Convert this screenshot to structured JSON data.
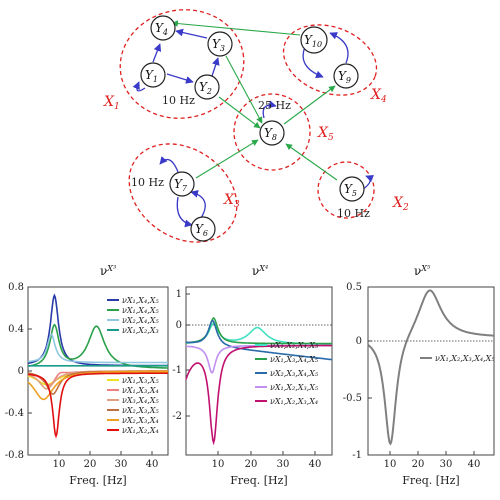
{
  "diagram": {
    "nodes": [
      {
        "id": "Y4",
        "main": "Y",
        "sub": "4"
      },
      {
        "id": "Y3",
        "main": "Y",
        "sub": "3"
      },
      {
        "id": "Y1",
        "main": "Y",
        "sub": "1"
      },
      {
        "id": "Y2",
        "main": "Y",
        "sub": "2"
      },
      {
        "id": "Y10",
        "main": "Y",
        "sub": "10"
      },
      {
        "id": "Y9",
        "main": "Y",
        "sub": "9"
      },
      {
        "id": "Y8",
        "main": "Y",
        "sub": "8"
      },
      {
        "id": "Y7",
        "main": "Y",
        "sub": "7"
      },
      {
        "id": "Y6",
        "main": "Y",
        "sub": "6"
      },
      {
        "id": "Y5",
        "main": "Y",
        "sub": "5"
      }
    ],
    "clusters": [
      {
        "id": "X1",
        "label": "X",
        "sub": "1"
      },
      {
        "id": "X4",
        "label": "X",
        "sub": "4"
      },
      {
        "id": "X5",
        "label": "X",
        "sub": "5"
      },
      {
        "id": "X3",
        "label": "X",
        "sub": "3"
      },
      {
        "id": "X2",
        "label": "X",
        "sub": "2"
      }
    ],
    "frequency_labels": {
      "y1": "10 Hz",
      "y8": "25 Hz",
      "y7": "10 Hz",
      "y5": "10 Hz"
    },
    "colors": {
      "within": "#3a3ac8",
      "between": "#2aa84a",
      "cluster": "#e02020"
    }
  },
  "chart_data": [
    {
      "type": "line",
      "title": "ν",
      "title_sup": "X³",
      "xlabel": "Freq. [Hz]",
      "xlim": [
        2,
        47
      ],
      "ylim": [
        -0.8,
        0.8
      ],
      "xticks": [
        "10",
        "20",
        "30",
        "40"
      ],
      "yticks": [
        "0.8",
        "0.4",
        "0",
        "-0.4",
        "-0.8"
      ],
      "series": [
        {
          "name": "νX1,X4,X5",
          "color": "#2a3aa8",
          "values": "peak 0.67 at 10Hz"
        },
        {
          "name": "νX1,X4,X5",
          "color": "#2aa04a",
          "values": "peaks 0.40 at 10Hz, 0.40 at 24Hz"
        },
        {
          "name": "νX2,X4,X5",
          "color": "#8fc8e0",
          "values": "peak 0.27 at 10Hz"
        },
        {
          "name": "νX1,X2,X3",
          "color": "#1a9a8a",
          "values": "small positive ~0.05"
        },
        {
          "name": "νX1,X3,X5",
          "color": "#f0e020",
          "values": "dip ~-0.10"
        },
        {
          "name": "νX1,X3,X4",
          "color": "#f08080",
          "values": "dip ~-0.12"
        },
        {
          "name": "νX3,X4,X5",
          "color": "#e0a080",
          "values": "dip ~-0.15"
        },
        {
          "name": "νX2,X3,X5",
          "color": "#c07040",
          "values": "dip ~-0.20"
        },
        {
          "name": "νX2,X3,X4",
          "color": "#f0a020",
          "values": "dip ~-0.27"
        },
        {
          "name": "νX1,X2,X4",
          "color": "#e01010",
          "values": "dip -0.60 at 11Hz"
        }
      ],
      "legend_pos": [
        "νX₁,X₄,X₅ (blue)",
        "νX₁,X₄,X₅ (green)",
        "νX₂,X₄,X₅",
        "νX₁,X₂,X₃",
        "νX₁,X₃,X₅",
        "νX₁,X₃,X₄",
        "νX₃,X₄,X₅",
        "νX₂,X₃,X₅",
        "νX₂,X₃,X₄",
        "νX₁,X₂,X₄"
      ]
    },
    {
      "type": "line",
      "title": "ν",
      "title_sup": "X⁴",
      "xlabel": "Freq. [Hz]",
      "xlim": [
        2,
        47
      ],
      "ylim": [
        -3,
        1.6
      ],
      "xticks": [
        "10",
        "20",
        "30",
        "40"
      ],
      "yticks": [
        "1",
        "0",
        "-1",
        "-2"
      ],
      "series": [
        {
          "name": "νX1,X2,X4,X5",
          "color": "#40e0c0",
          "values": "peaks 0.55 at 10Hz, 0.45 at 24Hz"
        },
        {
          "name": "νX1,X3,X4,X5",
          "color": "#2aa04a",
          "values": "peak 0.70 at 10Hz"
        },
        {
          "name": "νX2,X3,X4,X5",
          "color": "#2a6aa8",
          "values": "peak 0.70 at 10Hz"
        },
        {
          "name": "νX1,X2,X3,X5",
          "color": "#c090f0",
          "values": "dip -0.75 at 10Hz"
        },
        {
          "name": "νX1,X2,X3,X4",
          "color": "#c01070",
          "values": "dip -2.65 at 10Hz"
        }
      ]
    },
    {
      "type": "line",
      "title": "ν",
      "title_sup": "X⁵",
      "xlabel": "Freq. [Hz]",
      "xlim": [
        2,
        47
      ],
      "ylim": [
        -1,
        0.5
      ],
      "xticks": [
        "10",
        "20",
        "30",
        "40"
      ],
      "yticks": [
        "0.5",
        "0",
        "-0.5",
        "-1"
      ],
      "series": [
        {
          "name": "νX1,X2,X3,X4,X5",
          "color": "#808080",
          "values": "min -1.0 at 10Hz, max 0.45 at 24Hz"
        }
      ]
    }
  ],
  "legend1": [
    {
      "sub": "X₁,X₄,X₅",
      "color": "#2a3aa8"
    },
    {
      "sub": "X₁,X₄,X₅",
      "color": "#2aa04a"
    },
    {
      "sub": "X₂,X₄,X₅",
      "color": "#8fc8e0"
    },
    {
      "sub": "X₁,X₂,X₃",
      "color": "#1a9a8a"
    },
    {
      "sub": "X₁,X₃,X₅",
      "color": "#f0e020"
    },
    {
      "sub": "X₁,X₃,X₄",
      "color": "#f08080"
    },
    {
      "sub": "X₃,X₄,X₅",
      "color": "#e0a080"
    },
    {
      "sub": "X₂,X₃,X₅",
      "color": "#c07040"
    },
    {
      "sub": "X₂,X₃,X₄",
      "color": "#f0a020"
    },
    {
      "sub": "X₁,X₂,X₄",
      "color": "#e01010"
    }
  ],
  "legend2": [
    {
      "sub": "X₁,X₂,X₄,X₅",
      "color": "#40e0c0"
    },
    {
      "sub": "X₁,X₃,X₄,X₅",
      "color": "#2aa04a"
    },
    {
      "sub": "X₂,X₃,X₄,X₅",
      "color": "#2a6aa8"
    },
    {
      "sub": "X₁,X₂,X₃,X₅",
      "color": "#c090f0"
    },
    {
      "sub": "X₁,X₂,X₃,X₄",
      "color": "#c01070"
    }
  ],
  "legend3": [
    {
      "sub": "X₁,X₂,X₃,X₄,X₅",
      "color": "#808080"
    }
  ]
}
